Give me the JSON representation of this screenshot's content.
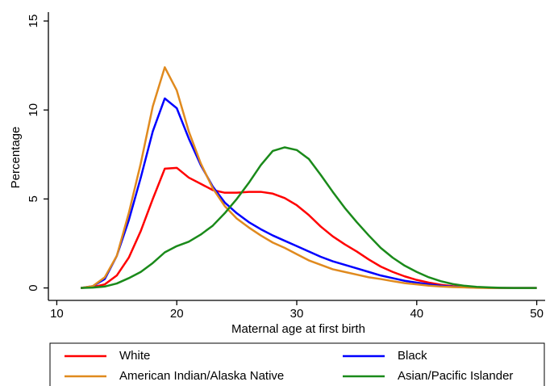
{
  "chart_data": {
    "type": "line",
    "x_label": "Maternal age at first birth",
    "y_label": "Percentage",
    "x": [
      12,
      13,
      14,
      15,
      16,
      17,
      18,
      19,
      20,
      21,
      22,
      23,
      24,
      25,
      26,
      27,
      28,
      29,
      30,
      31,
      32,
      33,
      34,
      35,
      36,
      37,
      38,
      39,
      40,
      41,
      42,
      43,
      44,
      45,
      46,
      47,
      48,
      49,
      50
    ],
    "series": [
      {
        "name": "White",
        "color": "#ff0000",
        "values": [
          0,
          0.05,
          0.2,
          0.7,
          1.7,
          3.2,
          5.0,
          6.7,
          6.75,
          6.2,
          5.85,
          5.5,
          5.35,
          5.35,
          5.4,
          5.4,
          5.3,
          5.05,
          4.65,
          4.1,
          3.45,
          2.9,
          2.45,
          2.05,
          1.6,
          1.2,
          0.9,
          0.65,
          0.45,
          0.3,
          0.18,
          0.1,
          0.05,
          0.03,
          0.01,
          0,
          0,
          0,
          0
        ]
      },
      {
        "name": "Black",
        "color": "#0000ff",
        "values": [
          0,
          0.1,
          0.5,
          1.8,
          3.8,
          6.2,
          8.8,
          10.65,
          10.1,
          8.4,
          6.9,
          5.7,
          4.8,
          4.2,
          3.7,
          3.3,
          2.95,
          2.65,
          2.35,
          2.05,
          1.75,
          1.5,
          1.3,
          1.1,
          0.9,
          0.7,
          0.55,
          0.4,
          0.3,
          0.2,
          0.12,
          0.07,
          0.04,
          0.02,
          0.01,
          0,
          0,
          0,
          0
        ]
      },
      {
        "name": "American Indian/Alaska Native",
        "color": "#e08a1e",
        "values": [
          0,
          0.1,
          0.6,
          1.8,
          4.2,
          7.0,
          10.2,
          12.4,
          11.1,
          8.8,
          7.0,
          5.6,
          4.6,
          3.9,
          3.4,
          2.95,
          2.55,
          2.25,
          1.9,
          1.55,
          1.3,
          1.05,
          0.9,
          0.75,
          0.6,
          0.5,
          0.38,
          0.27,
          0.2,
          0.13,
          0.08,
          0.05,
          0.03,
          0.01,
          0,
          0,
          0,
          0,
          0
        ]
      },
      {
        "name": "Asian/Pacific Islander",
        "color": "#1a8a1a",
        "values": [
          0,
          0.02,
          0.08,
          0.25,
          0.55,
          0.9,
          1.4,
          2.0,
          2.35,
          2.6,
          3.0,
          3.5,
          4.2,
          5.0,
          5.9,
          6.9,
          7.7,
          7.9,
          7.75,
          7.25,
          6.35,
          5.4,
          4.5,
          3.7,
          2.95,
          2.25,
          1.7,
          1.25,
          0.9,
          0.6,
          0.38,
          0.22,
          0.12,
          0.06,
          0.03,
          0.01,
          0,
          0,
          0
        ]
      }
    ],
    "xlim": [
      9.3,
      50.7
    ],
    "xticks": [
      10,
      20,
      30,
      40,
      50
    ],
    "ylim": [
      -0.7,
      15.5
    ],
    "yticks": [
      0,
      5,
      10,
      15
    ],
    "legend": "bottom"
  }
}
